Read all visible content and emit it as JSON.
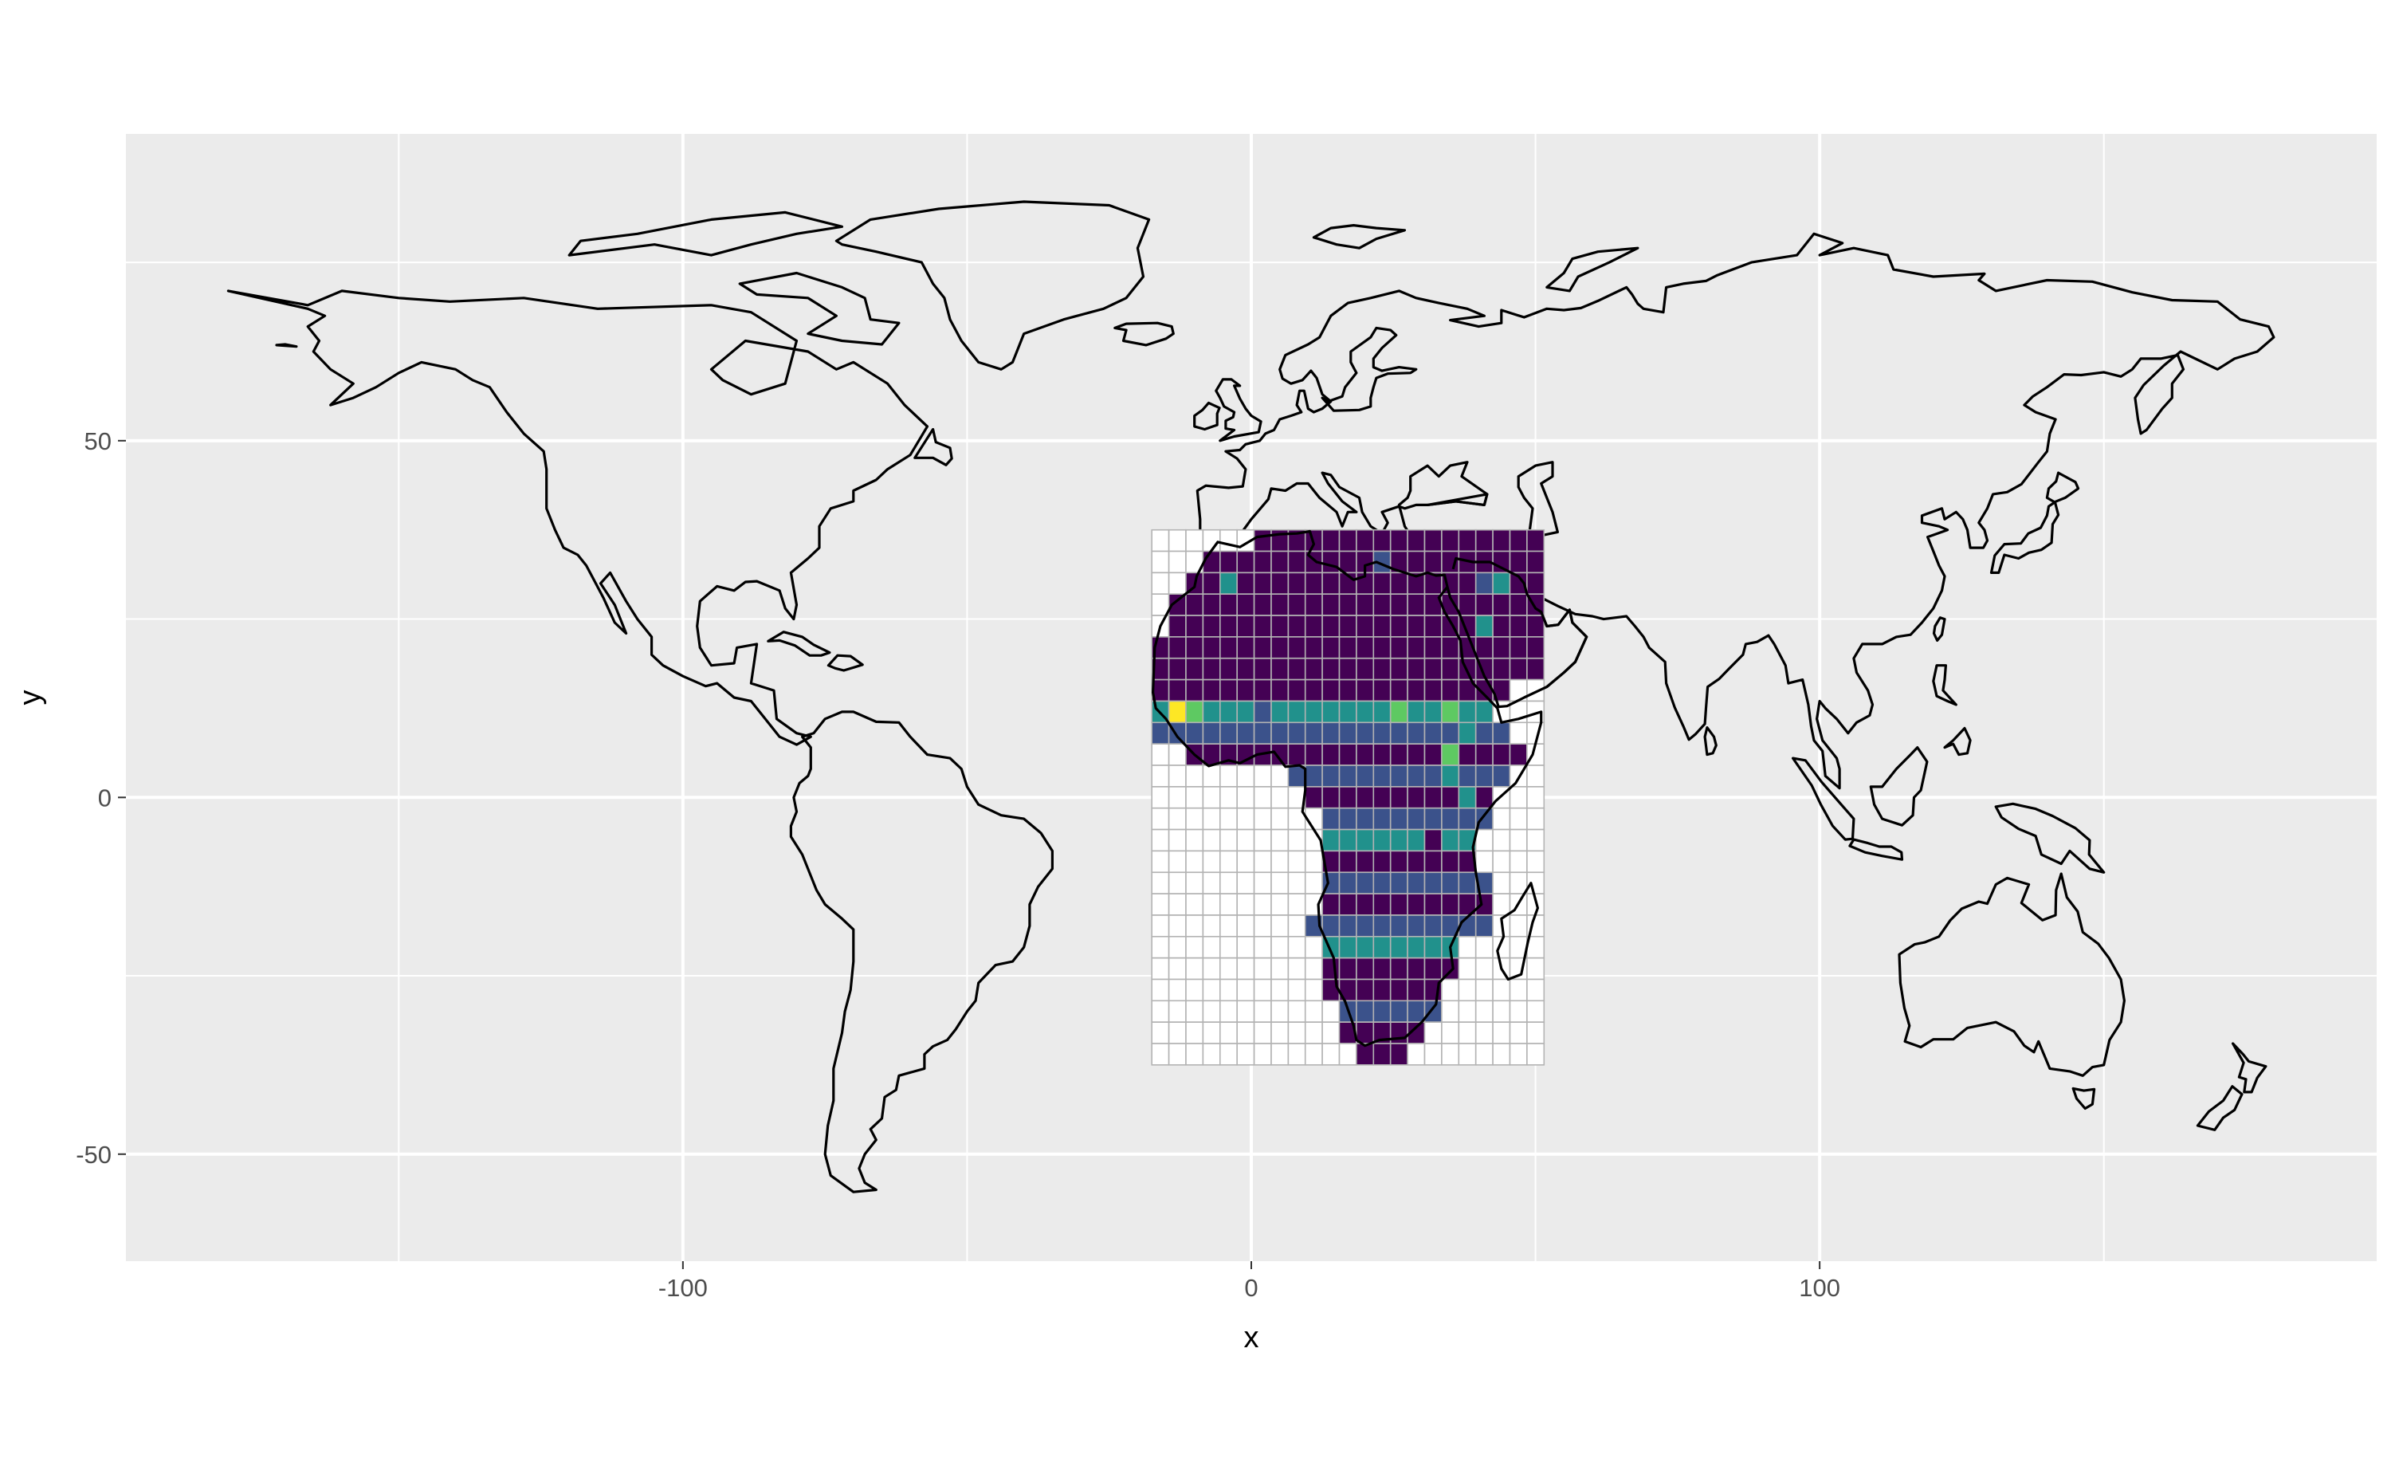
{
  "chart_data": {
    "type": "heatmap",
    "title": "",
    "xlabel": "x",
    "ylabel": "y",
    "xlim": [
      -198,
      198
    ],
    "ylim": [
      -65,
      93
    ],
    "x_ticks": [
      {
        "value": -100,
        "label": "-100"
      },
      {
        "value": 0,
        "label": "0"
      },
      {
        "value": 100,
        "label": "100"
      }
    ],
    "y_ticks": [
      {
        "value": 50,
        "label": "50"
      },
      {
        "value": 0,
        "label": "0"
      },
      {
        "value": -50,
        "label": "-50"
      }
    ],
    "minor_x_gridlines": [
      -150,
      -50,
      50,
      150
    ],
    "minor_y_gridlines": [
      75,
      25,
      -25
    ],
    "grid": true,
    "panel_background": "#ebebeb",
    "grid_color": "#ffffff",
    "legend": "none",
    "basemap": "world coastline outlines",
    "heat_grid": {
      "x_min": -17.5,
      "x_max": 51.5,
      "y_min": -35,
      "y_max": 37.5,
      "cell_size": 3,
      "empty_cell_color": "#ffffff",
      "empty_cell_line": "#b3b3b3",
      "palette": [
        "#440154",
        "#3b528b",
        "#21918c",
        "#5ec962",
        "#fde725"
      ],
      "rows": [
        {
          "lat": 37.5,
          "from": 0,
          "to": 51.5,
          "fill": "#440154"
        },
        {
          "lat": 34.5,
          "from": -7,
          "to": 51.5,
          "fill": "#440154"
        },
        {
          "lat": 31.5,
          "from": -10,
          "to": 51.5,
          "fill": "#440154"
        },
        {
          "lat": 28.5,
          "from": -14,
          "to": 51.5,
          "fill": "#440154"
        },
        {
          "lat": 25.5,
          "from": -15,
          "to": 51.5,
          "fill": "#440154"
        },
        {
          "lat": 22.5,
          "from": -17.5,
          "to": 51.5,
          "fill": "#440154"
        },
        {
          "lat": 19.5,
          "from": -17.5,
          "to": 51.5,
          "fill": "#440154"
        },
        {
          "lat": 16.5,
          "from": -17.5,
          "to": 46,
          "fill": "#440154"
        },
        {
          "lat": 13.5,
          "from": -17.5,
          "to": 43,
          "fill": "#21918c"
        },
        {
          "lat": 10.5,
          "from": -17.5,
          "to": 46,
          "fill": "#3b528b"
        },
        {
          "lat": 7.5,
          "from": -11,
          "to": 49,
          "fill": "#440154"
        },
        {
          "lat": 4.5,
          "from": 8,
          "to": 46,
          "fill": "#3b528b"
        },
        {
          "lat": 1.5,
          "from": 9,
          "to": 43,
          "fill": "#440154"
        },
        {
          "lat": -1.5,
          "from": 12,
          "to": 41,
          "fill": "#3b528b"
        },
        {
          "lat": -4.5,
          "from": 12,
          "to": 40,
          "fill": "#21918c"
        },
        {
          "lat": -7.5,
          "from": 13,
          "to": 40,
          "fill": "#440154"
        },
        {
          "lat": -10.5,
          "from": 13,
          "to": 41,
          "fill": "#3b528b"
        },
        {
          "lat": -13.5,
          "from": 12,
          "to": 41,
          "fill": "#440154"
        },
        {
          "lat": -16.5,
          "from": 11,
          "to": 41,
          "fill": "#3b528b"
        },
        {
          "lat": -19.5,
          "from": 12,
          "to": 36,
          "fill": "#21918c"
        },
        {
          "lat": -22.5,
          "from": 13,
          "to": 36,
          "fill": "#440154"
        },
        {
          "lat": -25.5,
          "from": 14,
          "to": 34,
          "fill": "#440154"
        },
        {
          "lat": -28.5,
          "from": 15,
          "to": 33,
          "fill": "#3b528b"
        },
        {
          "lat": -31.5,
          "from": 17,
          "to": 31,
          "fill": "#440154"
        },
        {
          "lat": -34.5,
          "from": 19,
          "to": 26,
          "fill": "#440154"
        }
      ],
      "highlights": [
        {
          "x": -13,
          "y": 13.5,
          "fill": "#fde725"
        },
        {
          "x": -10,
          "y": 13.5,
          "fill": "#5ec962"
        },
        {
          "x": -4,
          "y": 13.5,
          "fill": "#21918c"
        },
        {
          "x": 2,
          "y": 13.5,
          "fill": "#3b528b"
        },
        {
          "x": 26,
          "y": 13.5,
          "fill": "#5ec962"
        },
        {
          "x": 32,
          "y": 13.5,
          "fill": "#21918c"
        },
        {
          "x": 35,
          "y": 13.5,
          "fill": "#5ec962"
        },
        {
          "x": 38,
          "y": 10.5,
          "fill": "#21918c"
        },
        {
          "x": 35,
          "y": 7.5,
          "fill": "#5ec962"
        },
        {
          "x": 35,
          "y": 4.5,
          "fill": "#21918c"
        },
        {
          "x": 38,
          "y": 1.5,
          "fill": "#21918c"
        },
        {
          "x": 32,
          "y": -4.5,
          "fill": "#440154"
        },
        {
          "x": 47,
          "y": -19.5,
          "fill": "#21918c"
        },
        {
          "x": 47,
          "y": -22.5,
          "fill": "#21918c"
        },
        {
          "x": 41,
          "y": 25.5,
          "fill": "#21918c"
        },
        {
          "x": 41,
          "y": 31.5,
          "fill": "#3b528b"
        },
        {
          "x": 44,
          "y": 31.5,
          "fill": "#21918c"
        },
        {
          "x": -5,
          "y": 31.5,
          "fill": "#21918c"
        },
        {
          "x": 23,
          "y": 34.5,
          "fill": "#3b528b"
        }
      ]
    }
  }
}
